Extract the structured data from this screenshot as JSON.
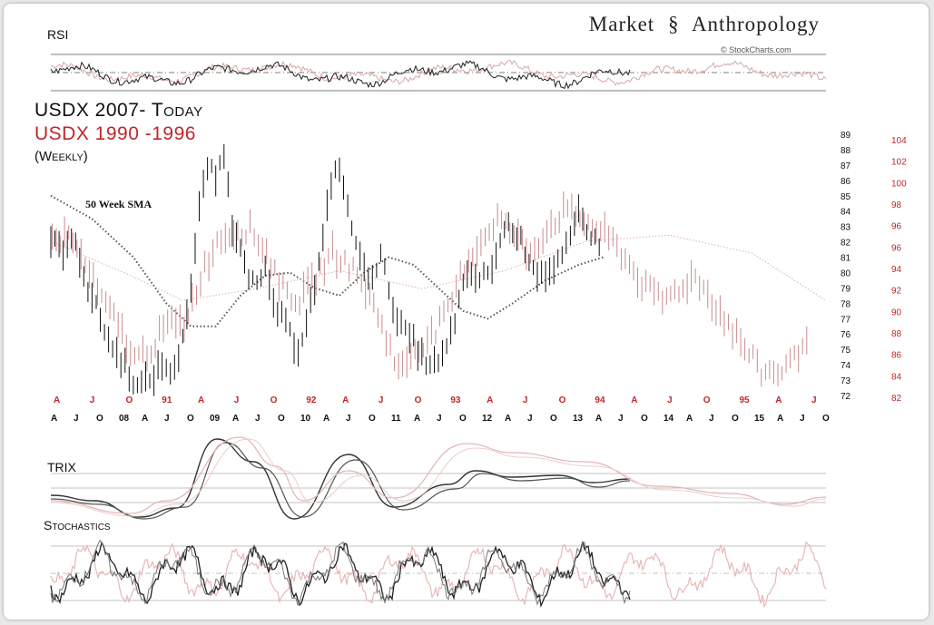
{
  "header": {
    "brand_left": "Market",
    "brand_right": "Anthropology",
    "credit": "© StockCharts.com"
  },
  "chart_data": [
    {
      "type": "line",
      "panel": "RSI",
      "title": "RSI",
      "levels": [
        30,
        50,
        70
      ]
    },
    {
      "type": "candlestick",
      "panel": "price",
      "title": "USDX 2007- Today",
      "subtitle": "USDX 1990 -1996",
      "note": "(Weekly)",
      "annotation": "50 Week SMA",
      "series": [
        {
          "name": "USDX 2007- Today",
          "color": "#111111",
          "axis": "left",
          "points": [
            [
              0,
              82
            ],
            [
              3,
              81.5
            ],
            [
              6,
              82
            ],
            [
              9,
              79
            ],
            [
              12,
              77
            ],
            [
              15,
              75
            ],
            [
              18,
              74
            ],
            [
              21,
              72.5
            ],
            [
              24,
              73
            ],
            [
              27,
              74
            ],
            [
              30,
              73.5
            ],
            [
              32,
              76
            ],
            [
              34,
              79
            ],
            [
              36,
              84
            ],
            [
              38,
              87
            ],
            [
              40,
              86
            ],
            [
              42,
              88
            ],
            [
              44,
              83
            ],
            [
              46,
              82
            ],
            [
              48,
              80
            ],
            [
              50,
              79
            ],
            [
              52,
              80
            ],
            [
              54,
              78
            ],
            [
              56,
              77
            ],
            [
              58,
              76
            ],
            [
              60,
              75
            ],
            [
              62,
              77
            ],
            [
              64,
              79
            ],
            [
              66,
              82
            ],
            [
              68,
              86
            ],
            [
              70,
              87
            ],
            [
              72,
              84
            ],
            [
              74,
              82
            ],
            [
              76,
              80
            ],
            [
              78,
              80
            ],
            [
              80,
              81
            ],
            [
              82,
              79
            ],
            [
              84,
              77
            ],
            [
              86,
              76
            ],
            [
              88,
              75.5
            ],
            [
              90,
              74.5
            ],
            [
              92,
              74
            ],
            [
              94,
              74
            ],
            [
              96,
              75
            ],
            [
              98,
              77
            ],
            [
              100,
              79
            ],
            [
              102,
              80
            ],
            [
              104,
              79.5
            ],
            [
              106,
              80
            ],
            [
              108,
              81
            ],
            [
              110,
              83
            ],
            [
              112,
              83
            ],
            [
              114,
              82
            ],
            [
              116,
              81
            ],
            [
              118,
              80
            ],
            [
              120,
              80
            ],
            [
              122,
              80
            ],
            [
              124,
              81
            ],
            [
              126,
              82
            ],
            [
              128,
              84
            ],
            [
              130,
              83
            ],
            [
              132,
              82
            ],
            [
              134,
              82
            ]
          ]
        },
        {
          "name": "USDX 1990 -1996",
          "color": "#c98c8c",
          "axis": "right",
          "points": [
            [
              0,
              95
            ],
            [
              4,
              95.5
            ],
            [
              8,
              93
            ],
            [
              12,
              90
            ],
            [
              16,
              88
            ],
            [
              20,
              85
            ],
            [
              24,
              86
            ],
            [
              28,
              88
            ],
            [
              32,
              88
            ],
            [
              36,
              92
            ],
            [
              40,
              95
            ],
            [
              44,
              96
            ],
            [
              48,
              96
            ],
            [
              52,
              94
            ],
            [
              56,
              91
            ],
            [
              60,
              90
            ],
            [
              64,
              92
            ],
            [
              68,
              94
            ],
            [
              72,
              93
            ],
            [
              76,
              91
            ],
            [
              80,
              88
            ],
            [
              84,
              84
            ],
            [
              88,
              86
            ],
            [
              92,
              87
            ],
            [
              96,
              89
            ],
            [
              100,
              93
            ],
            [
              104,
              95
            ],
            [
              108,
              97
            ],
            [
              112,
              95.5
            ],
            [
              116,
              94
            ],
            [
              120,
              96
            ],
            [
              124,
              97.5
            ],
            [
              128,
              97
            ],
            [
              132,
              96
            ],
            [
              136,
              95
            ],
            [
              140,
              93
            ],
            [
              144,
              91
            ],
            [
              148,
              90
            ],
            [
              152,
              91
            ],
            [
              156,
              92
            ],
            [
              160,
              90
            ],
            [
              164,
              88
            ],
            [
              168,
              86
            ],
            [
              172,
              84
            ],
            [
              176,
              84
            ],
            [
              180,
              85
            ],
            [
              184,
              88
            ]
          ]
        }
      ],
      "left_ticks": [
        "89",
        "88",
        "87",
        "86",
        "85",
        "84",
        "83",
        "82",
        "81",
        "80",
        "79",
        "78",
        "77",
        "76",
        "75",
        "74",
        "73",
        "72"
      ],
      "right_ticks": [
        "104",
        "102",
        "100",
        "98",
        "96",
        "96",
        "94",
        "92",
        "90",
        "88",
        "86",
        "84",
        "82"
      ],
      "top_month_labels": [
        "A",
        "J",
        "O",
        "91",
        "A",
        "J",
        "O",
        "92",
        "A",
        "J",
        "O",
        "93",
        "A",
        "J",
        "O",
        "94",
        "A",
        "J",
        "O",
        "95",
        "A",
        "J"
      ],
      "bottom_month_labels": [
        "A",
        "J",
        "O",
        "08",
        "A",
        "J",
        "O",
        "09",
        "A",
        "J",
        "O",
        "10",
        "A",
        "J",
        "O",
        "11",
        "A",
        "J",
        "O",
        "12",
        "A",
        "J",
        "O",
        "13",
        "A",
        "J",
        "O",
        "14",
        "A",
        "J",
        "O",
        "15",
        "A",
        "J",
        "O"
      ]
    },
    {
      "type": "line",
      "panel": "TRIX",
      "title": "TRIX"
    },
    {
      "type": "line",
      "panel": "Stochastics",
      "title": "Stochastics",
      "levels": [
        20,
        50,
        80
      ]
    }
  ]
}
